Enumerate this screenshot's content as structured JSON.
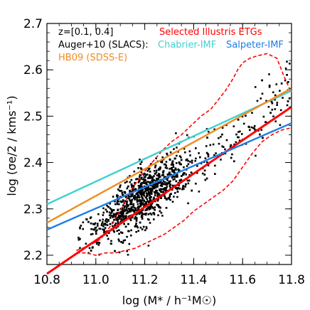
{
  "chart_data": {
    "type": "scatter",
    "xlabel": "log (M* / h⁻¹M☉)",
    "ylabel": "log (σe/2 / kms⁻¹)",
    "xlim": [
      10.8,
      11.8
    ],
    "ylim": [
      2.18,
      2.7
    ],
    "xticks": [
      "10.8",
      "11.0",
      "11.2",
      "11.4",
      "11.6",
      "11.8"
    ],
    "yticks": [
      "2.2",
      "2.3",
      "2.4",
      "2.5",
      "2.6",
      "2.7"
    ],
    "annotations": {
      "redshift": "z=[0.1, 0.4]",
      "sample": "Selected Illustris ETGs",
      "auger": "Auger+10 (SLACS):",
      "chabrier": "Chabrier-IMF",
      "salpeter": "Salpeter-IMF",
      "hb09": "HB09 (SDSS-E)"
    },
    "colors": {
      "points": "#000000",
      "fit": "#ff0000",
      "contour": "#ff0000",
      "chabrier": "#40d0d0",
      "salpeter": "#1e7ee6",
      "hb09": "#f08c1e",
      "sample_label": "#ff0000"
    },
    "series": [
      {
        "name": "Selected Illustris ETGs",
        "kind": "fit-line",
        "x": [
          10.8,
          11.8
        ],
        "y": [
          2.16,
          2.52
        ]
      },
      {
        "name": "Chabrier-IMF",
        "kind": "line",
        "x": [
          10.8,
          11.8
        ],
        "y": [
          2.31,
          2.555
        ]
      },
      {
        "name": "Salpeter-IMF",
        "kind": "line",
        "x": [
          10.8,
          11.8
        ],
        "y": [
          2.255,
          2.485
        ]
      },
      {
        "name": "HB09 (SDSS-E)",
        "kind": "line",
        "x": [
          10.8,
          11.8
        ],
        "y": [
          2.27,
          2.56
        ]
      }
    ],
    "contour_upper": {
      "x": [
        10.92,
        10.97,
        11.02,
        11.07,
        11.11,
        11.15,
        11.19,
        11.23,
        11.27,
        11.31,
        11.35,
        11.39,
        11.43,
        11.47,
        11.5,
        11.53,
        11.56,
        11.58,
        11.6,
        11.63,
        11.66,
        11.7,
        11.74,
        11.77,
        11.8
      ],
      "y": [
        2.21,
        2.22,
        2.235,
        2.27,
        2.305,
        2.345,
        2.375,
        2.4,
        2.425,
        2.445,
        2.46,
        2.48,
        2.5,
        2.515,
        2.535,
        2.555,
        2.58,
        2.6,
        2.615,
        2.625,
        2.63,
        2.635,
        2.625,
        2.585,
        2.55
      ]
    },
    "contour_lower": {
      "x": [
        10.92,
        10.96,
        11.0,
        11.04,
        11.08,
        11.12,
        11.16,
        11.2,
        11.24,
        11.28,
        11.32,
        11.36,
        11.4,
        11.44,
        11.48,
        11.52,
        11.56,
        11.6,
        11.64,
        11.68,
        11.72,
        11.76,
        11.8
      ],
      "y": [
        2.205,
        2.205,
        2.2,
        2.205,
        2.205,
        2.21,
        2.215,
        2.225,
        2.235,
        2.245,
        2.26,
        2.275,
        2.295,
        2.31,
        2.325,
        2.34,
        2.36,
        2.39,
        2.42,
        2.445,
        2.46,
        2.47,
        2.475
      ]
    },
    "scatter_model": {
      "count": 1400,
      "x_range": [
        10.92,
        11.8
      ],
      "x_peak": 11.2,
      "y_min": 2.2,
      "y_max": 2.69
    }
  }
}
